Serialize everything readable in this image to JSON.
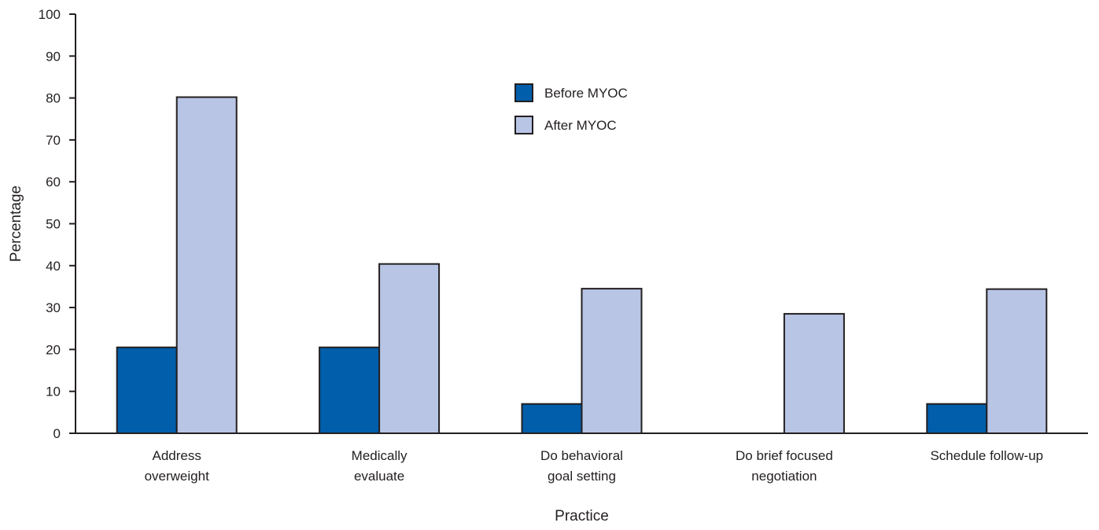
{
  "chart_data": {
    "type": "bar",
    "xlabel": "Practice",
    "ylabel": "Percentage",
    "ylim": [
      0,
      100
    ],
    "yticks": [
      0,
      10,
      20,
      30,
      40,
      50,
      60,
      70,
      80,
      90,
      100
    ],
    "categories": [
      [
        "Address",
        "overweight"
      ],
      [
        "Medically",
        "evaluate"
      ],
      [
        "Do behavioral",
        "goal setting"
      ],
      [
        "Do brief focused",
        "negotiation"
      ],
      [
        "Schedule follow-up"
      ]
    ],
    "series": [
      {
        "name": "Before MYOC",
        "color": "#005eaa",
        "values": [
          20.5,
          20.5,
          7,
          0,
          7
        ]
      },
      {
        "name": "After MYOC",
        "color": "#b9c5e5",
        "values": [
          80.2,
          40.4,
          34.5,
          28.5,
          34.4
        ]
      }
    ],
    "grid": false,
    "legend_position": "top-center"
  }
}
